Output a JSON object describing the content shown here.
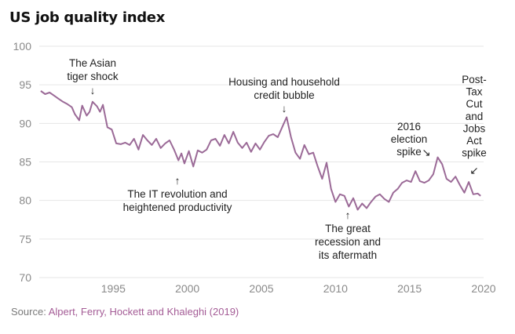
{
  "title": "US job quality index",
  "source_prefix": "Source:",
  "source_text": "Alpert, Ferry, Hockett and Khaleghi (2019)",
  "colors": {
    "line": "#9b6a97",
    "grid": "#e6e6e6",
    "source_link": "#a45c96"
  },
  "chart_data": {
    "type": "line",
    "title": "US job quality index",
    "xlabel": "",
    "ylabel": "",
    "xlim": [
      1990,
      2020
    ],
    "ylim": [
      70,
      100
    ],
    "x_ticks": [
      1995,
      2000,
      2005,
      2010,
      2015,
      2020
    ],
    "y_ticks": [
      70,
      75,
      80,
      85,
      90,
      95,
      100
    ],
    "grid": true,
    "series": [
      {
        "x": [
          1990.1,
          1990.4,
          1990.7,
          1991.0,
          1991.3,
          1991.6,
          1991.9,
          1992.2,
          1992.4,
          1992.7,
          1992.9,
          1993.2,
          1993.4,
          1993.6,
          1993.9,
          1994.1,
          1994.3,
          1994.6,
          1994.9,
          1995.2,
          1995.5,
          1995.8,
          1996.1,
          1996.4,
          1996.7,
          1997.0,
          1997.3,
          1997.6,
          1997.9,
          1998.2,
          1998.5,
          1998.8,
          1999.1,
          1999.4,
          1999.6,
          1999.8,
          2000.1,
          2000.4,
          2000.7,
          2001.0,
          2001.3,
          2001.6,
          2001.9,
          2002.2,
          2002.5,
          2002.8,
          2003.1,
          2003.4,
          2003.7,
          2004.0,
          2004.3,
          2004.6,
          2004.9,
          2005.2,
          2005.5,
          2005.8,
          2006.1,
          2006.4,
          2006.7,
          2007.0,
          2007.3,
          2007.6,
          2007.9,
          2008.2,
          2008.5,
          2008.8,
          2009.1,
          2009.4,
          2009.7,
          2010.0,
          2010.3,
          2010.6,
          2010.9,
          2011.2,
          2011.5,
          2011.8,
          2012.1,
          2012.4,
          2012.7,
          2013.0,
          2013.3,
          2013.6,
          2013.9,
          2014.2,
          2014.5,
          2014.8,
          2015.1,
          2015.4,
          2015.7,
          2016.0,
          2016.3,
          2016.6,
          2016.9,
          2017.2,
          2017.5,
          2017.8,
          2018.1,
          2018.4,
          2018.7,
          2019.0,
          2019.3,
          2019.6,
          2019.8
        ],
        "values": [
          94.2,
          93.8,
          94.0,
          93.6,
          93.2,
          92.8,
          92.5,
          92.1,
          91.2,
          90.4,
          92.3,
          91.0,
          91.5,
          92.8,
          92.2,
          91.5,
          92.4,
          89.5,
          89.2,
          87.4,
          87.3,
          87.5,
          87.2,
          88.0,
          86.6,
          88.5,
          87.8,
          87.2,
          88.0,
          86.8,
          87.4,
          87.8,
          86.6,
          85.2,
          86.1,
          84.8,
          86.4,
          84.4,
          86.5,
          86.2,
          86.6,
          87.8,
          88.0,
          87.1,
          88.5,
          87.4,
          88.9,
          87.5,
          86.8,
          87.5,
          86.3,
          87.4,
          86.6,
          87.6,
          88.4,
          88.6,
          88.2,
          89.5,
          90.8,
          88.2,
          86.2,
          85.4,
          87.2,
          86.0,
          86.2,
          84.4,
          82.8,
          84.9,
          81.5,
          79.8,
          80.8,
          80.6,
          79.2,
          80.3,
          78.8,
          79.6,
          79.0,
          79.8,
          80.5,
          80.8,
          80.2,
          79.8,
          81.0,
          81.5,
          82.3,
          82.6,
          82.4,
          83.8,
          82.5,
          82.3,
          82.6,
          83.4,
          85.6,
          84.7,
          82.8,
          82.4,
          83.1,
          82.0,
          81.0,
          82.4,
          80.8,
          80.9,
          80.6
        ]
      }
    ],
    "annotations": [
      {
        "lines": [
          "The Asian",
          "tiger shock"
        ],
        "arrow": "↓"
      },
      {
        "lines": [
          "Housing and household",
          "credit bubble"
        ],
        "arrow": "↓"
      },
      {
        "lines": [
          "The IT revolution and",
          "heightened productivity"
        ],
        "arrow": "↑"
      },
      {
        "lines": [
          "The great",
          "recession and",
          "its aftermath"
        ],
        "arrow": "↑"
      },
      {
        "lines": [
          "2016",
          "election",
          "spike"
        ],
        "arrow": "↘"
      },
      {
        "lines": [
          "Post-",
          "Tax",
          "Cut",
          "and",
          "Jobs",
          "Act",
          "spike"
        ],
        "arrow": "↙"
      }
    ]
  }
}
